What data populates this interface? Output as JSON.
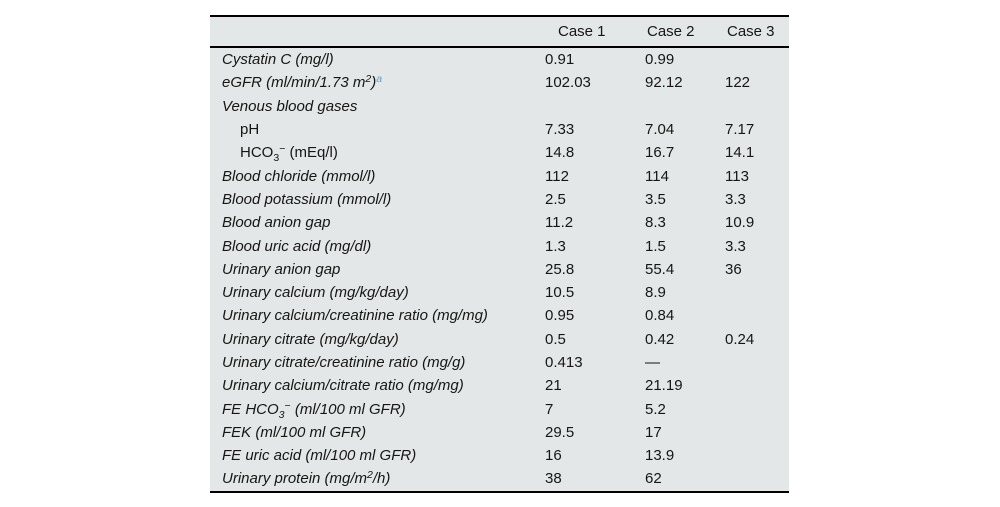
{
  "page": {
    "background": "#ffffff"
  },
  "table": {
    "columns": [
      "Case 1",
      "Case 2",
      "Case 3"
    ],
    "colors": {
      "table_background": "#e3e7e7",
      "rule": "#000000",
      "text": "#161616",
      "footnote_marker": "#58a6d4"
    },
    "rows": [
      {
        "label": [
          {
            "t": "Cystatin C (mg/l)"
          }
        ],
        "italic": true,
        "indent": false,
        "values": [
          "0.91",
          "0.99",
          ""
        ]
      },
      {
        "label": [
          {
            "t": "eGFR (ml/min/1.73 m"
          },
          {
            "t": "2",
            "s": "sup"
          },
          {
            "t": ")"
          },
          {
            "t": "a",
            "s": "footnote"
          }
        ],
        "italic": true,
        "indent": false,
        "values": [
          "102.03",
          "92.12",
          "122"
        ]
      },
      {
        "label": [
          {
            "t": "Venous blood gases"
          }
        ],
        "italic": true,
        "indent": false,
        "values": [
          "",
          "",
          ""
        ]
      },
      {
        "label": [
          {
            "t": "pH"
          }
        ],
        "italic": false,
        "indent": true,
        "values": [
          "7.33",
          "7.04",
          "7.17"
        ]
      },
      {
        "label": [
          {
            "t": "HCO"
          },
          {
            "t": "3",
            "s": "sub"
          },
          {
            "t": "−",
            "s": "sup"
          },
          {
            "t": " (mEq/l)"
          }
        ],
        "italic": false,
        "indent": true,
        "values": [
          "14.8",
          "16.7",
          "14.1"
        ]
      },
      {
        "label": [
          {
            "t": "Blood chloride (mmol/l)"
          }
        ],
        "italic": true,
        "indent": false,
        "values": [
          "112",
          "114",
          "113"
        ]
      },
      {
        "label": [
          {
            "t": "Blood potassium (mmol/l)"
          }
        ],
        "italic": true,
        "indent": false,
        "values": [
          "2.5",
          "3.5",
          "3.3"
        ]
      },
      {
        "label": [
          {
            "t": "Blood anion gap"
          }
        ],
        "italic": true,
        "indent": false,
        "values": [
          "11.2",
          "8.3",
          "10.9"
        ]
      },
      {
        "label": [
          {
            "t": "Blood uric acid (mg/dl)"
          }
        ],
        "italic": true,
        "indent": false,
        "values": [
          "1.3",
          "1.5",
          "3.3"
        ]
      },
      {
        "label": [
          {
            "t": "Urinary anion gap"
          }
        ],
        "italic": true,
        "indent": false,
        "values": [
          "25.8",
          "55.4",
          "36"
        ]
      },
      {
        "label": [
          {
            "t": "Urinary calcium (mg/kg/day)"
          }
        ],
        "italic": true,
        "indent": false,
        "values": [
          "10.5",
          "8.9",
          ""
        ]
      },
      {
        "label": [
          {
            "t": "Urinary calcium/creatinine ratio (mg/mg)"
          }
        ],
        "italic": true,
        "indent": false,
        "values": [
          "0.95",
          "0.84",
          ""
        ]
      },
      {
        "label": [
          {
            "t": "Urinary citrate (mg/kg/day)"
          }
        ],
        "italic": true,
        "indent": false,
        "values": [
          "0.5",
          "0.42",
          "0.24"
        ]
      },
      {
        "label": [
          {
            "t": "Urinary citrate/creatinine ratio (mg/g)"
          }
        ],
        "italic": true,
        "indent": false,
        "values": [
          "0.413",
          "—",
          ""
        ]
      },
      {
        "label": [
          {
            "t": "Urinary calcium/citrate ratio (mg/mg)"
          }
        ],
        "italic": true,
        "indent": false,
        "values": [
          "21",
          "21.19",
          ""
        ]
      },
      {
        "label": [
          {
            "t": "FE HCO"
          },
          {
            "t": "3",
            "s": "sub"
          },
          {
            "t": "−",
            "s": "sup"
          },
          {
            "t": " (ml/100 ml GFR)"
          }
        ],
        "italic": true,
        "indent": false,
        "values": [
          "7",
          "5.2",
          ""
        ]
      },
      {
        "label": [
          {
            "t": "FEK (ml/100 ml GFR)"
          }
        ],
        "italic": true,
        "indent": false,
        "values": [
          "29.5",
          "17",
          ""
        ]
      },
      {
        "label": [
          {
            "t": "FE uric acid (ml/100 ml GFR)"
          }
        ],
        "italic": true,
        "indent": false,
        "values": [
          "16",
          "13.9",
          ""
        ]
      },
      {
        "label": [
          {
            "t": "Urinary protein (mg/m"
          },
          {
            "t": "2",
            "s": "sup"
          },
          {
            "t": "/h)"
          }
        ],
        "italic": true,
        "indent": false,
        "values": [
          "38",
          "62",
          ""
        ]
      }
    ]
  }
}
